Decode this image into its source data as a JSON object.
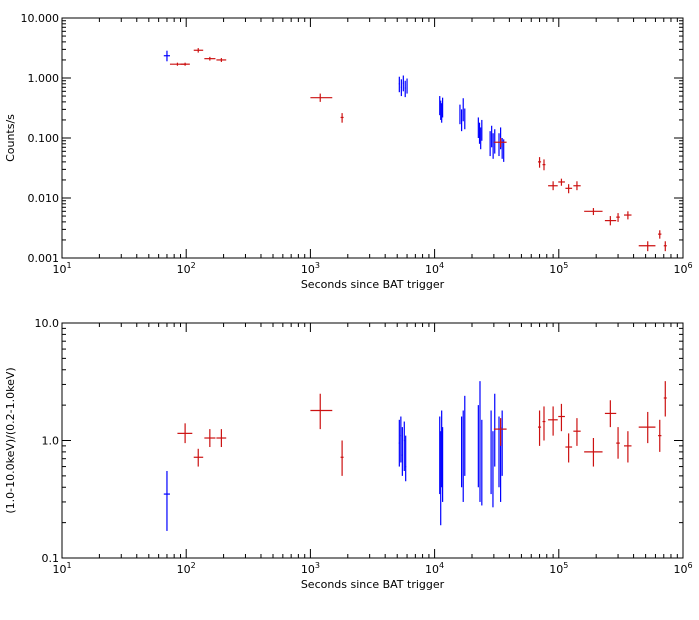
{
  "colors": {
    "pc": "#0000ff",
    "wt": "#cc1111",
    "axis": "#000000",
    "background": "#ffffff"
  },
  "chart_data": [
    {
      "type": "scatter",
      "title": "",
      "xlabel": "Seconds since BAT trigger",
      "ylabel": "Counts/s",
      "xscale": "log",
      "yscale": "log",
      "xlim": [
        10,
        1000000
      ],
      "ylim": [
        0.001,
        10
      ],
      "x_ticks": [
        {
          "v": 10,
          "base": "10",
          "exp": "1"
        },
        {
          "v": 100,
          "base": "10",
          "exp": "2"
        },
        {
          "v": 1000,
          "base": "10",
          "exp": "3"
        },
        {
          "v": 10000,
          "base": "10",
          "exp": "4"
        },
        {
          "v": 100000,
          "base": "10",
          "exp": "5"
        },
        {
          "v": 1000000,
          "base": "10",
          "exp": "6"
        }
      ],
      "y_ticks": [
        {
          "v": 0.001,
          "label": "0.001"
        },
        {
          "v": 0.01,
          "label": "0.010"
        },
        {
          "v": 0.1,
          "label": "0.100"
        },
        {
          "v": 1,
          "label": "1.000"
        },
        {
          "v": 10,
          "label": "10.000"
        }
      ],
      "series": [
        {
          "color_key": "pc",
          "points": [
            {
              "x": 70,
              "xlo": 66,
              "xhi": 74,
              "y": 2.35,
              "ylo": 1.9,
              "yhi": 2.85
            },
            {
              "x": 5200,
              "xlo": 5150,
              "xhi": 5250,
              "y": 0.8,
              "ylo": 0.58,
              "yhi": 1.05
            },
            {
              "x": 5400,
              "xlo": 5350,
              "xhi": 5450,
              "y": 0.7,
              "ylo": 0.5,
              "yhi": 0.95
            },
            {
              "x": 5600,
              "xlo": 5550,
              "xhi": 5650,
              "y": 0.82,
              "ylo": 0.6,
              "yhi": 1.1
            },
            {
              "x": 5800,
              "xlo": 5750,
              "xhi": 5850,
              "y": 0.68,
              "ylo": 0.48,
              "yhi": 0.9
            },
            {
              "x": 6000,
              "xlo": 5950,
              "xhi": 6050,
              "y": 0.75,
              "ylo": 0.55,
              "yhi": 0.98
            },
            {
              "x": 11000,
              "xlo": 10950,
              "xhi": 11050,
              "y": 0.35,
              "ylo": 0.24,
              "yhi": 0.5
            },
            {
              "x": 11200,
              "xlo": 11150,
              "xhi": 11250,
              "y": 0.3,
              "ylo": 0.2,
              "yhi": 0.42
            },
            {
              "x": 11400,
              "xlo": 11350,
              "xhi": 11450,
              "y": 0.26,
              "ylo": 0.18,
              "yhi": 0.38
            },
            {
              "x": 11600,
              "xlo": 11550,
              "xhi": 11650,
              "y": 0.33,
              "ylo": 0.22,
              "yhi": 0.47
            },
            {
              "x": 16000,
              "xlo": 15950,
              "xhi": 16050,
              "y": 0.25,
              "ylo": 0.17,
              "yhi": 0.36
            },
            {
              "x": 16500,
              "xlo": 16450,
              "xhi": 16550,
              "y": 0.2,
              "ylo": 0.13,
              "yhi": 0.3
            },
            {
              "x": 17000,
              "xlo": 16950,
              "xhi": 17050,
              "y": 0.28,
              "ylo": 0.19,
              "yhi": 0.46
            },
            {
              "x": 17500,
              "xlo": 17450,
              "xhi": 17550,
              "y": 0.22,
              "ylo": 0.14,
              "yhi": 0.31
            },
            {
              "x": 22500,
              "xlo": 22450,
              "xhi": 22550,
              "y": 0.16,
              "ylo": 0.1,
              "yhi": 0.22
            },
            {
              "x": 23000,
              "xlo": 22950,
              "xhi": 23050,
              "y": 0.12,
              "ylo": 0.08,
              "yhi": 0.18
            },
            {
              "x": 23500,
              "xlo": 23450,
              "xhi": 23550,
              "y": 0.1,
              "ylo": 0.065,
              "yhi": 0.15
            },
            {
              "x": 24000,
              "xlo": 23950,
              "xhi": 24050,
              "y": 0.14,
              "ylo": 0.09,
              "yhi": 0.2
            },
            {
              "x": 28000,
              "xlo": 27950,
              "xhi": 28050,
              "y": 0.085,
              "ylo": 0.05,
              "yhi": 0.13
            },
            {
              "x": 28800,
              "xlo": 28750,
              "xhi": 28850,
              "y": 0.11,
              "ylo": 0.07,
              "yhi": 0.16
            },
            {
              "x": 29600,
              "xlo": 29550,
              "xhi": 29650,
              "y": 0.075,
              "ylo": 0.045,
              "yhi": 0.12
            },
            {
              "x": 30500,
              "xlo": 30450,
              "xhi": 30550,
              "y": 0.09,
              "ylo": 0.055,
              "yhi": 0.14
            },
            {
              "x": 33000,
              "xlo": 32950,
              "xhi": 33050,
              "y": 0.08,
              "ylo": 0.05,
              "yhi": 0.12
            },
            {
              "x": 34000,
              "xlo": 33950,
              "xhi": 34050,
              "y": 0.1,
              "ylo": 0.065,
              "yhi": 0.15
            },
            {
              "x": 35000,
              "xlo": 34950,
              "xhi": 35050,
              "y": 0.07,
              "ylo": 0.045,
              "yhi": 0.1
            },
            {
              "x": 36000,
              "xlo": 35950,
              "xhi": 36050,
              "y": 0.065,
              "ylo": 0.04,
              "yhi": 0.095
            }
          ]
        },
        {
          "color_key": "wt",
          "points": [
            {
              "x": 85,
              "xlo": 74,
              "xhi": 100,
              "y": 1.7,
              "ylo": 1.6,
              "yhi": 1.8
            },
            {
              "x": 98,
              "xlo": 90,
              "xhi": 107,
              "y": 1.7,
              "ylo": 1.6,
              "yhi": 1.8
            },
            {
              "x": 125,
              "xlo": 115,
              "xhi": 137,
              "y": 2.9,
              "ylo": 2.65,
              "yhi": 3.15
            },
            {
              "x": 155,
              "xlo": 140,
              "xhi": 172,
              "y": 2.1,
              "ylo": 1.95,
              "yhi": 2.25
            },
            {
              "x": 192,
              "xlo": 175,
              "xhi": 210,
              "y": 2.0,
              "ylo": 1.85,
              "yhi": 2.15
            },
            {
              "x": 1200,
              "xlo": 1000,
              "xhi": 1500,
              "y": 0.47,
              "ylo": 0.4,
              "yhi": 0.55
            },
            {
              "x": 1800,
              "xlo": 1750,
              "xhi": 1850,
              "y": 0.22,
              "ylo": 0.18,
              "yhi": 0.26
            },
            {
              "x": 34000,
              "xlo": 30000,
              "xhi": 38000,
              "y": 0.085,
              "ylo": 0.07,
              "yhi": 0.1
            },
            {
              "x": 70000,
              "xlo": 68000,
              "xhi": 72000,
              "y": 0.04,
              "ylo": 0.032,
              "yhi": 0.048
            },
            {
              "x": 76000,
              "xlo": 74000,
              "xhi": 78000,
              "y": 0.036,
              "ylo": 0.029,
              "yhi": 0.044
            },
            {
              "x": 90000,
              "xlo": 82000,
              "xhi": 98000,
              "y": 0.016,
              "ylo": 0.0135,
              "yhi": 0.019
            },
            {
              "x": 105000,
              "xlo": 99000,
              "xhi": 112000,
              "y": 0.0185,
              "ylo": 0.016,
              "yhi": 0.021
            },
            {
              "x": 120000,
              "xlo": 113000,
              "xhi": 128000,
              "y": 0.0145,
              "ylo": 0.012,
              "yhi": 0.017
            },
            {
              "x": 140000,
              "xlo": 131000,
              "xhi": 150000,
              "y": 0.016,
              "ylo": 0.0135,
              "yhi": 0.019
            },
            {
              "x": 190000,
              "xlo": 160000,
              "xhi": 225000,
              "y": 0.006,
              "ylo": 0.0052,
              "yhi": 0.0068
            },
            {
              "x": 260000,
              "xlo": 235000,
              "xhi": 290000,
              "y": 0.0042,
              "ylo": 0.0035,
              "yhi": 0.005
            },
            {
              "x": 300000,
              "xlo": 290000,
              "xhi": 310000,
              "y": 0.0048,
              "ylo": 0.004,
              "yhi": 0.0056
            },
            {
              "x": 360000,
              "xlo": 335000,
              "xhi": 385000,
              "y": 0.0052,
              "ylo": 0.0044,
              "yhi": 0.006
            },
            {
              "x": 520000,
              "xlo": 440000,
              "xhi": 600000,
              "y": 0.0016,
              "ylo": 0.0013,
              "yhi": 0.0019
            },
            {
              "x": 650000,
              "xlo": 630000,
              "xhi": 670000,
              "y": 0.0025,
              "ylo": 0.0021,
              "yhi": 0.0029
            },
            {
              "x": 720000,
              "xlo": 700000,
              "xhi": 740000,
              "y": 0.0016,
              "ylo": 0.0013,
              "yhi": 0.0019
            }
          ]
        }
      ]
    },
    {
      "type": "scatter",
      "title": "",
      "xlabel": "Seconds since BAT trigger",
      "ylabel": "(1.0-10.0keV)/(0.2-1.0keV)",
      "xscale": "log",
      "yscale": "log",
      "xlim": [
        10,
        1000000
      ],
      "ylim": [
        0.1,
        10
      ],
      "x_ticks": [
        {
          "v": 10,
          "base": "10",
          "exp": "1"
        },
        {
          "v": 100,
          "base": "10",
          "exp": "2"
        },
        {
          "v": 1000,
          "base": "10",
          "exp": "3"
        },
        {
          "v": 10000,
          "base": "10",
          "exp": "4"
        },
        {
          "v": 100000,
          "base": "10",
          "exp": "5"
        },
        {
          "v": 1000000,
          "base": "10",
          "exp": "6"
        }
      ],
      "y_ticks": [
        {
          "v": 0.1,
          "label": "0.1"
        },
        {
          "v": 1,
          "label": "1.0"
        },
        {
          "v": 10,
          "label": "10.0"
        }
      ],
      "series": [
        {
          "color_key": "pc",
          "points": [
            {
              "x": 70,
              "xlo": 66,
              "xhi": 74,
              "y": 0.35,
              "ylo": 0.17,
              "yhi": 0.55
            },
            {
              "x": 5200,
              "xlo": 5150,
              "xhi": 5250,
              "y": 0.95,
              "ylo": 0.6,
              "yhi": 1.5
            },
            {
              "x": 5350,
              "xlo": 5300,
              "xhi": 5400,
              "y": 1.1,
              "ylo": 0.65,
              "yhi": 1.6
            },
            {
              "x": 5500,
              "xlo": 5450,
              "xhi": 5550,
              "y": 0.75,
              "ylo": 0.5,
              "yhi": 1.3
            },
            {
              "x": 5700,
              "xlo": 5650,
              "xhi": 5750,
              "y": 1.0,
              "ylo": 0.55,
              "yhi": 1.45
            },
            {
              "x": 5850,
              "xlo": 5800,
              "xhi": 5900,
              "y": 0.6,
              "ylo": 0.45,
              "yhi": 1.1
            },
            {
              "x": 11000,
              "xlo": 10950,
              "xhi": 11050,
              "y": 0.9,
              "ylo": 0.35,
              "yhi": 1.6
            },
            {
              "x": 11200,
              "xlo": 11150,
              "xhi": 11250,
              "y": 0.6,
              "ylo": 0.19,
              "yhi": 1.2
            },
            {
              "x": 11400,
              "xlo": 11350,
              "xhi": 11450,
              "y": 1.0,
              "ylo": 0.4,
              "yhi": 1.8
            },
            {
              "x": 11600,
              "xlo": 11550,
              "xhi": 11650,
              "y": 0.75,
              "ylo": 0.3,
              "yhi": 1.3
            },
            {
              "x": 16500,
              "xlo": 16450,
              "xhi": 16550,
              "y": 0.9,
              "ylo": 0.4,
              "yhi": 1.6
            },
            {
              "x": 17000,
              "xlo": 16950,
              "xhi": 17050,
              "y": 0.6,
              "ylo": 0.3,
              "yhi": 1.8
            },
            {
              "x": 17500,
              "xlo": 17450,
              "xhi": 17550,
              "y": 1.2,
              "ylo": 0.5,
              "yhi": 2.4
            },
            {
              "x": 22500,
              "xlo": 22450,
              "xhi": 22550,
              "y": 1.2,
              "ylo": 0.4,
              "yhi": 2.0
            },
            {
              "x": 23200,
              "xlo": 23150,
              "xhi": 23250,
              "y": 1.5,
              "ylo": 0.3,
              "yhi": 3.2
            },
            {
              "x": 24000,
              "xlo": 23950,
              "xhi": 24050,
              "y": 0.8,
              "ylo": 0.28,
              "yhi": 1.5
            },
            {
              "x": 28500,
              "xlo": 28450,
              "xhi": 28550,
              "y": 0.9,
              "ylo": 0.35,
              "yhi": 1.8
            },
            {
              "x": 29500,
              "xlo": 29450,
              "xhi": 29550,
              "y": 0.55,
              "ylo": 0.27,
              "yhi": 1.2
            },
            {
              "x": 30500,
              "xlo": 30450,
              "xhi": 30550,
              "y": 1.4,
              "ylo": 0.6,
              "yhi": 2.5
            },
            {
              "x": 33000,
              "xlo": 32950,
              "xhi": 33050,
              "y": 1.0,
              "ylo": 0.4,
              "yhi": 1.6
            },
            {
              "x": 34000,
              "xlo": 33950,
              "xhi": 34050,
              "y": 0.7,
              "ylo": 0.3,
              "yhi": 1.3
            },
            {
              "x": 35000,
              "xlo": 34950,
              "xhi": 35050,
              "y": 1.1,
              "ylo": 0.5,
              "yhi": 1.8
            }
          ]
        },
        {
          "color_key": "wt",
          "points": [
            {
              "x": 98,
              "xlo": 85,
              "xhi": 112,
              "y": 1.15,
              "ylo": 0.95,
              "yhi": 1.4
            },
            {
              "x": 125,
              "xlo": 115,
              "xhi": 137,
              "y": 0.72,
              "ylo": 0.6,
              "yhi": 0.85
            },
            {
              "x": 155,
              "xlo": 140,
              "xhi": 172,
              "y": 1.05,
              "ylo": 0.88,
              "yhi": 1.25
            },
            {
              "x": 192,
              "xlo": 175,
              "xhi": 210,
              "y": 1.05,
              "ylo": 0.88,
              "yhi": 1.25
            },
            {
              "x": 1200,
              "xlo": 1000,
              "xhi": 1500,
              "y": 1.8,
              "ylo": 1.25,
              "yhi": 2.5
            },
            {
              "x": 1800,
              "xlo": 1750,
              "xhi": 1850,
              "y": 0.72,
              "ylo": 0.5,
              "yhi": 1.0
            },
            {
              "x": 34000,
              "xlo": 30000,
              "xhi": 38000,
              "y": 1.25,
              "ylo": 0.9,
              "yhi": 1.55
            },
            {
              "x": 70000,
              "xlo": 68000,
              "xhi": 72000,
              "y": 1.3,
              "ylo": 0.9,
              "yhi": 1.8
            },
            {
              "x": 76000,
              "xlo": 74000,
              "xhi": 78000,
              "y": 1.45,
              "ylo": 1.0,
              "yhi": 1.95
            },
            {
              "x": 90000,
              "xlo": 82000,
              "xhi": 98000,
              "y": 1.5,
              "ylo": 1.1,
              "yhi": 1.95
            },
            {
              "x": 105000,
              "xlo": 99000,
              "xhi": 112000,
              "y": 1.6,
              "ylo": 1.2,
              "yhi": 2.05
            },
            {
              "x": 120000,
              "xlo": 113000,
              "xhi": 128000,
              "y": 0.88,
              "ylo": 0.65,
              "yhi": 1.15
            },
            {
              "x": 140000,
              "xlo": 131000,
              "xhi": 150000,
              "y": 1.2,
              "ylo": 0.9,
              "yhi": 1.55
            },
            {
              "x": 190000,
              "xlo": 160000,
              "xhi": 225000,
              "y": 0.8,
              "ylo": 0.6,
              "yhi": 1.05
            },
            {
              "x": 260000,
              "xlo": 235000,
              "xhi": 290000,
              "y": 1.7,
              "ylo": 1.3,
              "yhi": 2.2
            },
            {
              "x": 300000,
              "xlo": 290000,
              "xhi": 310000,
              "y": 0.95,
              "ylo": 0.7,
              "yhi": 1.3
            },
            {
              "x": 360000,
              "xlo": 335000,
              "xhi": 385000,
              "y": 0.9,
              "ylo": 0.65,
              "yhi": 1.2
            },
            {
              "x": 520000,
              "xlo": 440000,
              "xhi": 600000,
              "y": 1.3,
              "ylo": 0.95,
              "yhi": 1.75
            },
            {
              "x": 650000,
              "xlo": 630000,
              "xhi": 670000,
              "y": 1.1,
              "ylo": 0.8,
              "yhi": 1.5
            },
            {
              "x": 720000,
              "xlo": 700000,
              "xhi": 740000,
              "y": 2.3,
              "ylo": 1.6,
              "yhi": 3.2
            }
          ]
        }
      ]
    }
  ]
}
